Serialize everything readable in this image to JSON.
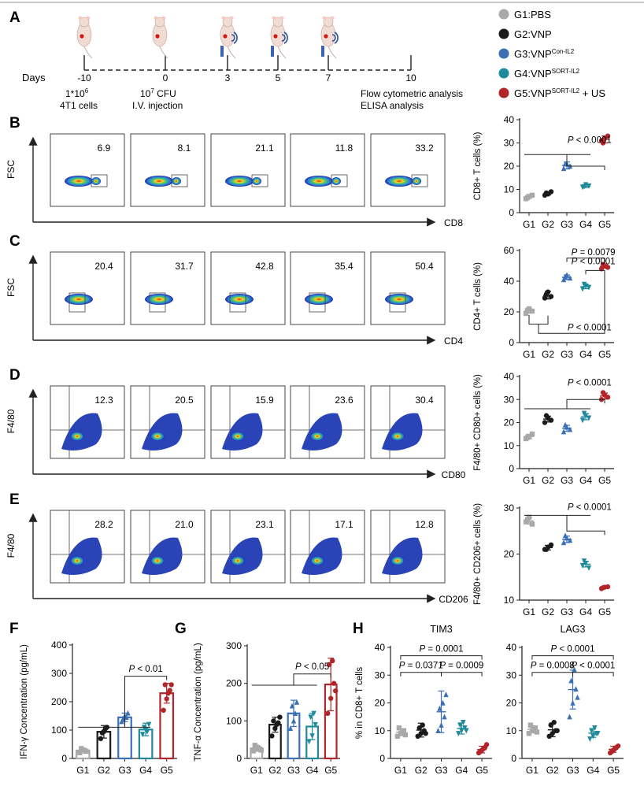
{
  "colors": {
    "G1": "#a9a9a9",
    "G2": "#1a1a1a",
    "G3": "#3b6fb6",
    "G4": "#1e8a9a",
    "G5": "#b2262b"
  },
  "panelA": {
    "letter": "A",
    "days_label": "Days",
    "timepoints": [
      "-10",
      "0",
      "3",
      "5",
      "7",
      "10"
    ],
    "notes": {
      "d_m10_line1": "1*10",
      "d_m10_sup": "6",
      "d_m10_line2": "4T1 cells",
      "d_0_line1": "10",
      "d_0_sup": "7",
      "d_0_line1b": " CFU",
      "d_0_line2": "I.V. injection",
      "d_10_line1": "Flow cytometric analysis",
      "d_10_line2": "ELISA analysis"
    }
  },
  "legend": [
    {
      "key": "G1",
      "prefix": "G1:PBS",
      "sup": "",
      "suffix": ""
    },
    {
      "key": "G2",
      "prefix": "G2:VNP",
      "sup": "",
      "suffix": ""
    },
    {
      "key": "G3",
      "prefix": "G3:VNP",
      "sup": "Con-IL2",
      "suffix": ""
    },
    {
      "key": "G4",
      "prefix": "G4:VNP",
      "sup": "SORT-IL2",
      "suffix": ""
    },
    {
      "key": "G5",
      "prefix": "G5:VNP",
      "sup": "SORT-IL2",
      "suffix": " + US"
    }
  ],
  "flow": [
    {
      "letter": "B",
      "y_axis": "FSC",
      "x_axis": "CD8",
      "values": [
        "6.9",
        "8.1",
        "21.1",
        "11.8",
        "33.2"
      ]
    },
    {
      "letter": "C",
      "y_axis": "FSC",
      "x_axis": "CD4",
      "values": [
        "20.4",
        "31.7",
        "42.8",
        "35.4",
        "50.4"
      ]
    },
    {
      "letter": "D",
      "y_axis": "F4/80",
      "x_axis": "CD80",
      "values": [
        "12.3",
        "20.5",
        "15.9",
        "23.6",
        "30.4"
      ]
    },
    {
      "letter": "E",
      "y_axis": "F4/80",
      "x_axis": "CD206",
      "values": [
        "28.2",
        "21.0",
        "23.1",
        "17.1",
        "12.8"
      ]
    }
  ],
  "chart_data": [
    {
      "id": "B",
      "type": "scatter",
      "ylabel": "CD8+ T cells (%)",
      "ylim": [
        0,
        40
      ],
      "yticks": [
        "0",
        "10",
        "20",
        "30",
        "40"
      ],
      "categories": [
        "G1",
        "G2",
        "G3",
        "G4",
        "G5"
      ],
      "points": [
        [
          6,
          7,
          7.5,
          6.5
        ],
        [
          7.5,
          8,
          9,
          8.5
        ],
        [
          19,
          21,
          20,
          21
        ],
        [
          11,
          12,
          11.5,
          11.2
        ],
        [
          31,
          32,
          33,
          30
        ]
      ],
      "means": [
        6.8,
        8.3,
        20.3,
        11.4,
        31.5
      ],
      "sds": [
        0.6,
        0.7,
        1.5,
        0.6,
        1.5
      ],
      "pvalues": [
        {
          "text": "P < 0.0001"
        }
      ]
    },
    {
      "id": "C",
      "type": "scatter",
      "ylabel": "CD4+ T cells (%)",
      "ylim": [
        0,
        60
      ],
      "yticks": [
        "0",
        "20",
        "40",
        "60"
      ],
      "categories": [
        "G1",
        "G2",
        "G3",
        "G4",
        "G5"
      ],
      "points": [
        [
          19,
          22,
          20.5,
          21
        ],
        [
          29,
          33,
          30,
          31.5
        ],
        [
          41,
          44,
          42,
          43
        ],
        [
          35,
          37,
          36,
          38
        ],
        [
          48,
          50,
          49,
          51
        ]
      ],
      "means": [
        20.6,
        30.9,
        42.5,
        36.4,
        49.6
      ],
      "sds": [
        1.5,
        2.5,
        1.5,
        1.3,
        1.2
      ],
      "pvalues": [
        {
          "text": "P = 0.0079"
        },
        {
          "text": "P < 0.0001"
        },
        {
          "text": "P < 0.0001"
        }
      ]
    },
    {
      "id": "D",
      "type": "scatter",
      "ylabel": "F4/80+ CD80+ cells (%)",
      "ylim": [
        0,
        40
      ],
      "yticks": [
        "0",
        "10",
        "20",
        "30",
        "40"
      ],
      "categories": [
        "G1",
        "G2",
        "G3",
        "G4",
        "G5"
      ],
      "points": [
        [
          13,
          14,
          15,
          13.5
        ],
        [
          20,
          22,
          21,
          23
        ],
        [
          16,
          18,
          17,
          19
        ],
        [
          21,
          23,
          22,
          24
        ],
        [
          30,
          32,
          31,
          33
        ]
      ],
      "means": [
        13.9,
        21.5,
        17.5,
        22.5,
        31.5
      ],
      "sds": [
        1,
        1.3,
        1.3,
        1.3,
        1.3
      ],
      "pvalues": [
        {
          "text": "P < 0.0001"
        }
      ]
    },
    {
      "id": "E",
      "type": "scatter",
      "ylabel": "F4/80+ CD206+ cells (%)",
      "ylim": [
        10,
        30
      ],
      "yticks": [
        "10",
        "20",
        "30"
      ],
      "categories": [
        "G1",
        "G2",
        "G3",
        "G4",
        "G5"
      ],
      "points": [
        [
          27,
          28,
          26.5,
          27.5
        ],
        [
          21,
          21.5,
          22,
          21
        ],
        [
          22.5,
          23.5,
          23,
          24
        ],
        [
          17.5,
          18,
          17,
          18.5
        ],
        [
          12.5,
          12.8,
          12.9,
          12.7
        ]
      ],
      "means": [
        27.2,
        21.4,
        23.2,
        17.8,
        12.7
      ],
      "sds": [
        0.7,
        0.5,
        0.7,
        0.6,
        0.2
      ],
      "pvalues": [
        {
          "text": "P < 0.0001"
        }
      ]
    },
    {
      "id": "F",
      "type": "bar",
      "ylabel": "IFN-γ Concentration (pg/mL)",
      "ylim": [
        0,
        400
      ],
      "yticks": [
        "0",
        "100",
        "200",
        "300",
        "400"
      ],
      "categories": [
        "G1",
        "G2",
        "G3",
        "G4",
        "G5"
      ],
      "points": [
        [
          20,
          30,
          25,
          35,
          28
        ],
        [
          70,
          95,
          110,
          90,
          105
        ],
        [
          130,
          150,
          160,
          140,
          145
        ],
        [
          85,
          100,
          120,
          110,
          95
        ],
        [
          170,
          210,
          240,
          260,
          230,
          260
        ]
      ],
      "means": [
        28,
        94,
        145,
        102,
        230
      ],
      "sds": [
        8,
        22,
        15,
        22,
        35
      ],
      "pvalues": [
        {
          "text": "P < 0.01"
        }
      ]
    },
    {
      "id": "G",
      "type": "bar",
      "ylabel": "TNF-α Concentration (pg/mL)",
      "ylim": [
        0,
        300
      ],
      "yticks": [
        "0",
        "100",
        "200",
        "300"
      ],
      "categories": [
        "G1",
        "G2",
        "G3",
        "G4",
        "G5"
      ],
      "points": [
        [
          20,
          30,
          25,
          35,
          28,
          22
        ],
        [
          60,
          80,
          95,
          100,
          90,
          110
        ],
        [
          80,
          100,
          150,
          140,
          120
        ],
        [
          45,
          60,
          90,
          110,
          120
        ],
        [
          120,
          160,
          200,
          250,
          260,
          180
        ]
      ],
      "means": [
        27,
        90,
        120,
        85,
        197
      ],
      "sds": [
        8,
        20,
        35,
        35,
        70
      ],
      "pvalues": [
        {
          "text": "P < 0.05"
        }
      ]
    },
    {
      "id": "H1",
      "type": "scatter",
      "title": "TIM3",
      "ylabel": "% in CD8+ T cells",
      "ylim": [
        0,
        40
      ],
      "yticks": [
        "0",
        "10",
        "20",
        "30",
        "40"
      ],
      "categories": [
        "G1",
        "G2",
        "G3",
        "G4",
        "G5"
      ],
      "points": [
        [
          8,
          9,
          10,
          11,
          9.5,
          8.5
        ],
        [
          8,
          9,
          10,
          11,
          12,
          9
        ],
        [
          10,
          12,
          15,
          18,
          20,
          23
        ],
        [
          9,
          10,
          11,
          12,
          13,
          10
        ],
        [
          2,
          3,
          4,
          2.5,
          3.5,
          5
        ]
      ],
      "means": [
        9.4,
        10.2,
        16.8,
        10.8,
        3.2
      ],
      "sds": [
        1.2,
        2.5,
        7.5,
        2,
        1.2
      ],
      "pvalues": [
        {
          "text": "P = 0.0001"
        },
        {
          "text": "P = 0.0371"
        },
        {
          "text": "P = 0.0009"
        }
      ]
    },
    {
      "id": "H2",
      "type": "scatter",
      "title": "LAG3",
      "ylabel": "",
      "ylim": [
        0,
        40
      ],
      "yticks": [
        "0",
        "10",
        "20",
        "30",
        "40"
      ],
      "categories": [
        "G1",
        "G2",
        "G3",
        "G4",
        "G5"
      ],
      "points": [
        [
          9,
          10,
          11,
          12,
          10.5,
          9.5
        ],
        [
          8,
          9,
          10,
          12,
          13,
          10
        ],
        [
          15,
          20,
          25,
          28,
          32,
          22
        ],
        [
          7,
          8,
          9,
          10,
          11,
          9
        ],
        [
          2,
          3,
          4,
          2.5,
          3.5,
          4.5
        ]
      ],
      "means": [
        10.5,
        10.3,
        24.8,
        9.1,
        3.3
      ],
      "sds": [
        1.3,
        2.5,
        7,
        1.5,
        1.1
      ],
      "pvalues": [
        {
          "text": "P < 0.0001"
        },
        {
          "text": "P = 0.0008"
        },
        {
          "text": "P < 0.0001"
        }
      ]
    }
  ],
  "panel_letters": {
    "F": "F",
    "G": "G",
    "H": "H"
  }
}
